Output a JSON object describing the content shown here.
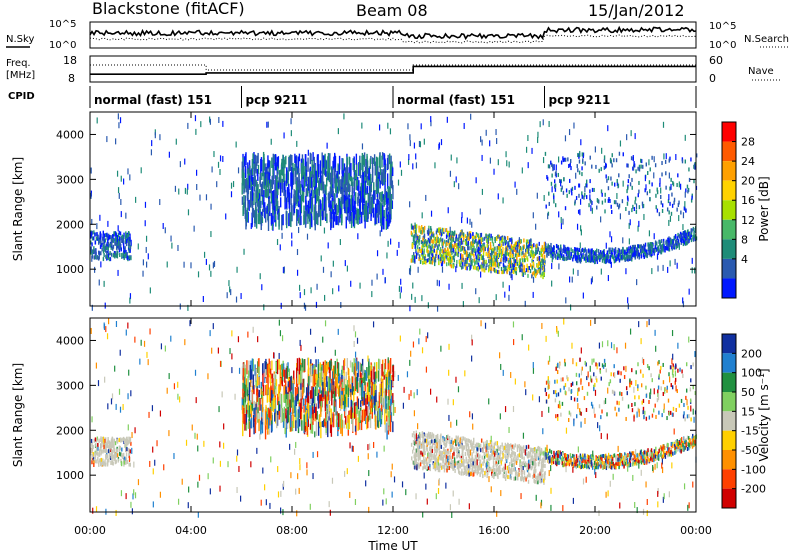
{
  "header": {
    "site": "Blackstone (fitACF)",
    "beam": "Beam 08",
    "date": "15/Jan/2012"
  },
  "labels": {
    "nsky": "N.Sky",
    "nsearch": "N.Search",
    "freq_line1": "Freq.",
    "freq_line2": "[MHz]",
    "nave": "Nave",
    "cpid": "CPID",
    "xlabel": "Time UT",
    "ylabel": "Slant Range [km]",
    "power_label": "Power [dB]",
    "velocity_label": "Velocity [m s⁻¹]"
  },
  "noise_axis": {
    "left_ticks": [
      "10^5",
      "10^0"
    ],
    "right_ticks": [
      "10^5",
      "10^0"
    ]
  },
  "freq_axis": {
    "left_ticks": [
      "18",
      "8"
    ],
    "right_ticks": [
      "60",
      "0"
    ]
  },
  "cpid_segments": [
    {
      "start": 0,
      "end": 6,
      "label": "normal (fast) 151"
    },
    {
      "start": 6,
      "end": 12,
      "label": "pcp 9211"
    },
    {
      "start": 12,
      "end": 18,
      "label": "normal (fast) 151"
    },
    {
      "start": 18,
      "end": 24,
      "label": "pcp 9211"
    }
  ],
  "power_scale": {
    "ticks": [
      "28",
      "24",
      "20",
      "16",
      "12",
      "8",
      "4"
    ],
    "colors": [
      "#ff0000",
      "#ff5a00",
      "#ffa000",
      "#ffd200",
      "#a8e000",
      "#48b868",
      "#1e8c78",
      "#2a5ab0",
      "#0018ff"
    ]
  },
  "velocity_scale": {
    "ticks": [
      "200",
      "100",
      "50",
      "15",
      "-15",
      "-50",
      "-100",
      "-200"
    ],
    "colors": [
      "#1030a0",
      "#2080d0",
      "#209040",
      "#80d060",
      "#c8c8b8",
      "#ffd000",
      "#ff9000",
      "#ff4000",
      "#d00000"
    ]
  },
  "chart_data": {
    "type": "heatmap",
    "title": "Blackstone (fitACF)",
    "x_ticks": [
      "00:00",
      "04:00",
      "08:00",
      "12:00",
      "16:00",
      "20:00",
      "00:00"
    ],
    "xlim": [
      0,
      24
    ],
    "xlabel": "Time UT",
    "y_ticks": [
      1000,
      2000,
      3000,
      4000
    ],
    "ylim": [
      180,
      4500
    ],
    "ylabel": "Slant Range [km]",
    "panels": [
      "Power [dB]",
      "Velocity [m s⁻¹]"
    ],
    "frequency_mhz": [
      {
        "start": 0,
        "end": 4.6,
        "value": 11
      },
      {
        "start": 4.6,
        "end": 12.8,
        "value": 11.5
      },
      {
        "start": 12.8,
        "end": 24,
        "value": 14
      }
    ],
    "echo_regions": [
      {
        "start": 0,
        "end": 1.6,
        "range_low": 1200,
        "range_high": 1800,
        "description": "near-range echo band"
      },
      {
        "start": 6,
        "end": 12,
        "range_low": 2100,
        "range_high": 3550,
        "description": "scattered noise block"
      },
      {
        "start": 12.7,
        "end": 18,
        "range_low": 1000,
        "range_high": 2200,
        "description": "strong ionospheric scatter, power up to ~28 dB"
      },
      {
        "start": 18,
        "end": 24,
        "range_low": 1100,
        "range_high": 1900,
        "description": "arc of weak scatter"
      }
    ]
  }
}
